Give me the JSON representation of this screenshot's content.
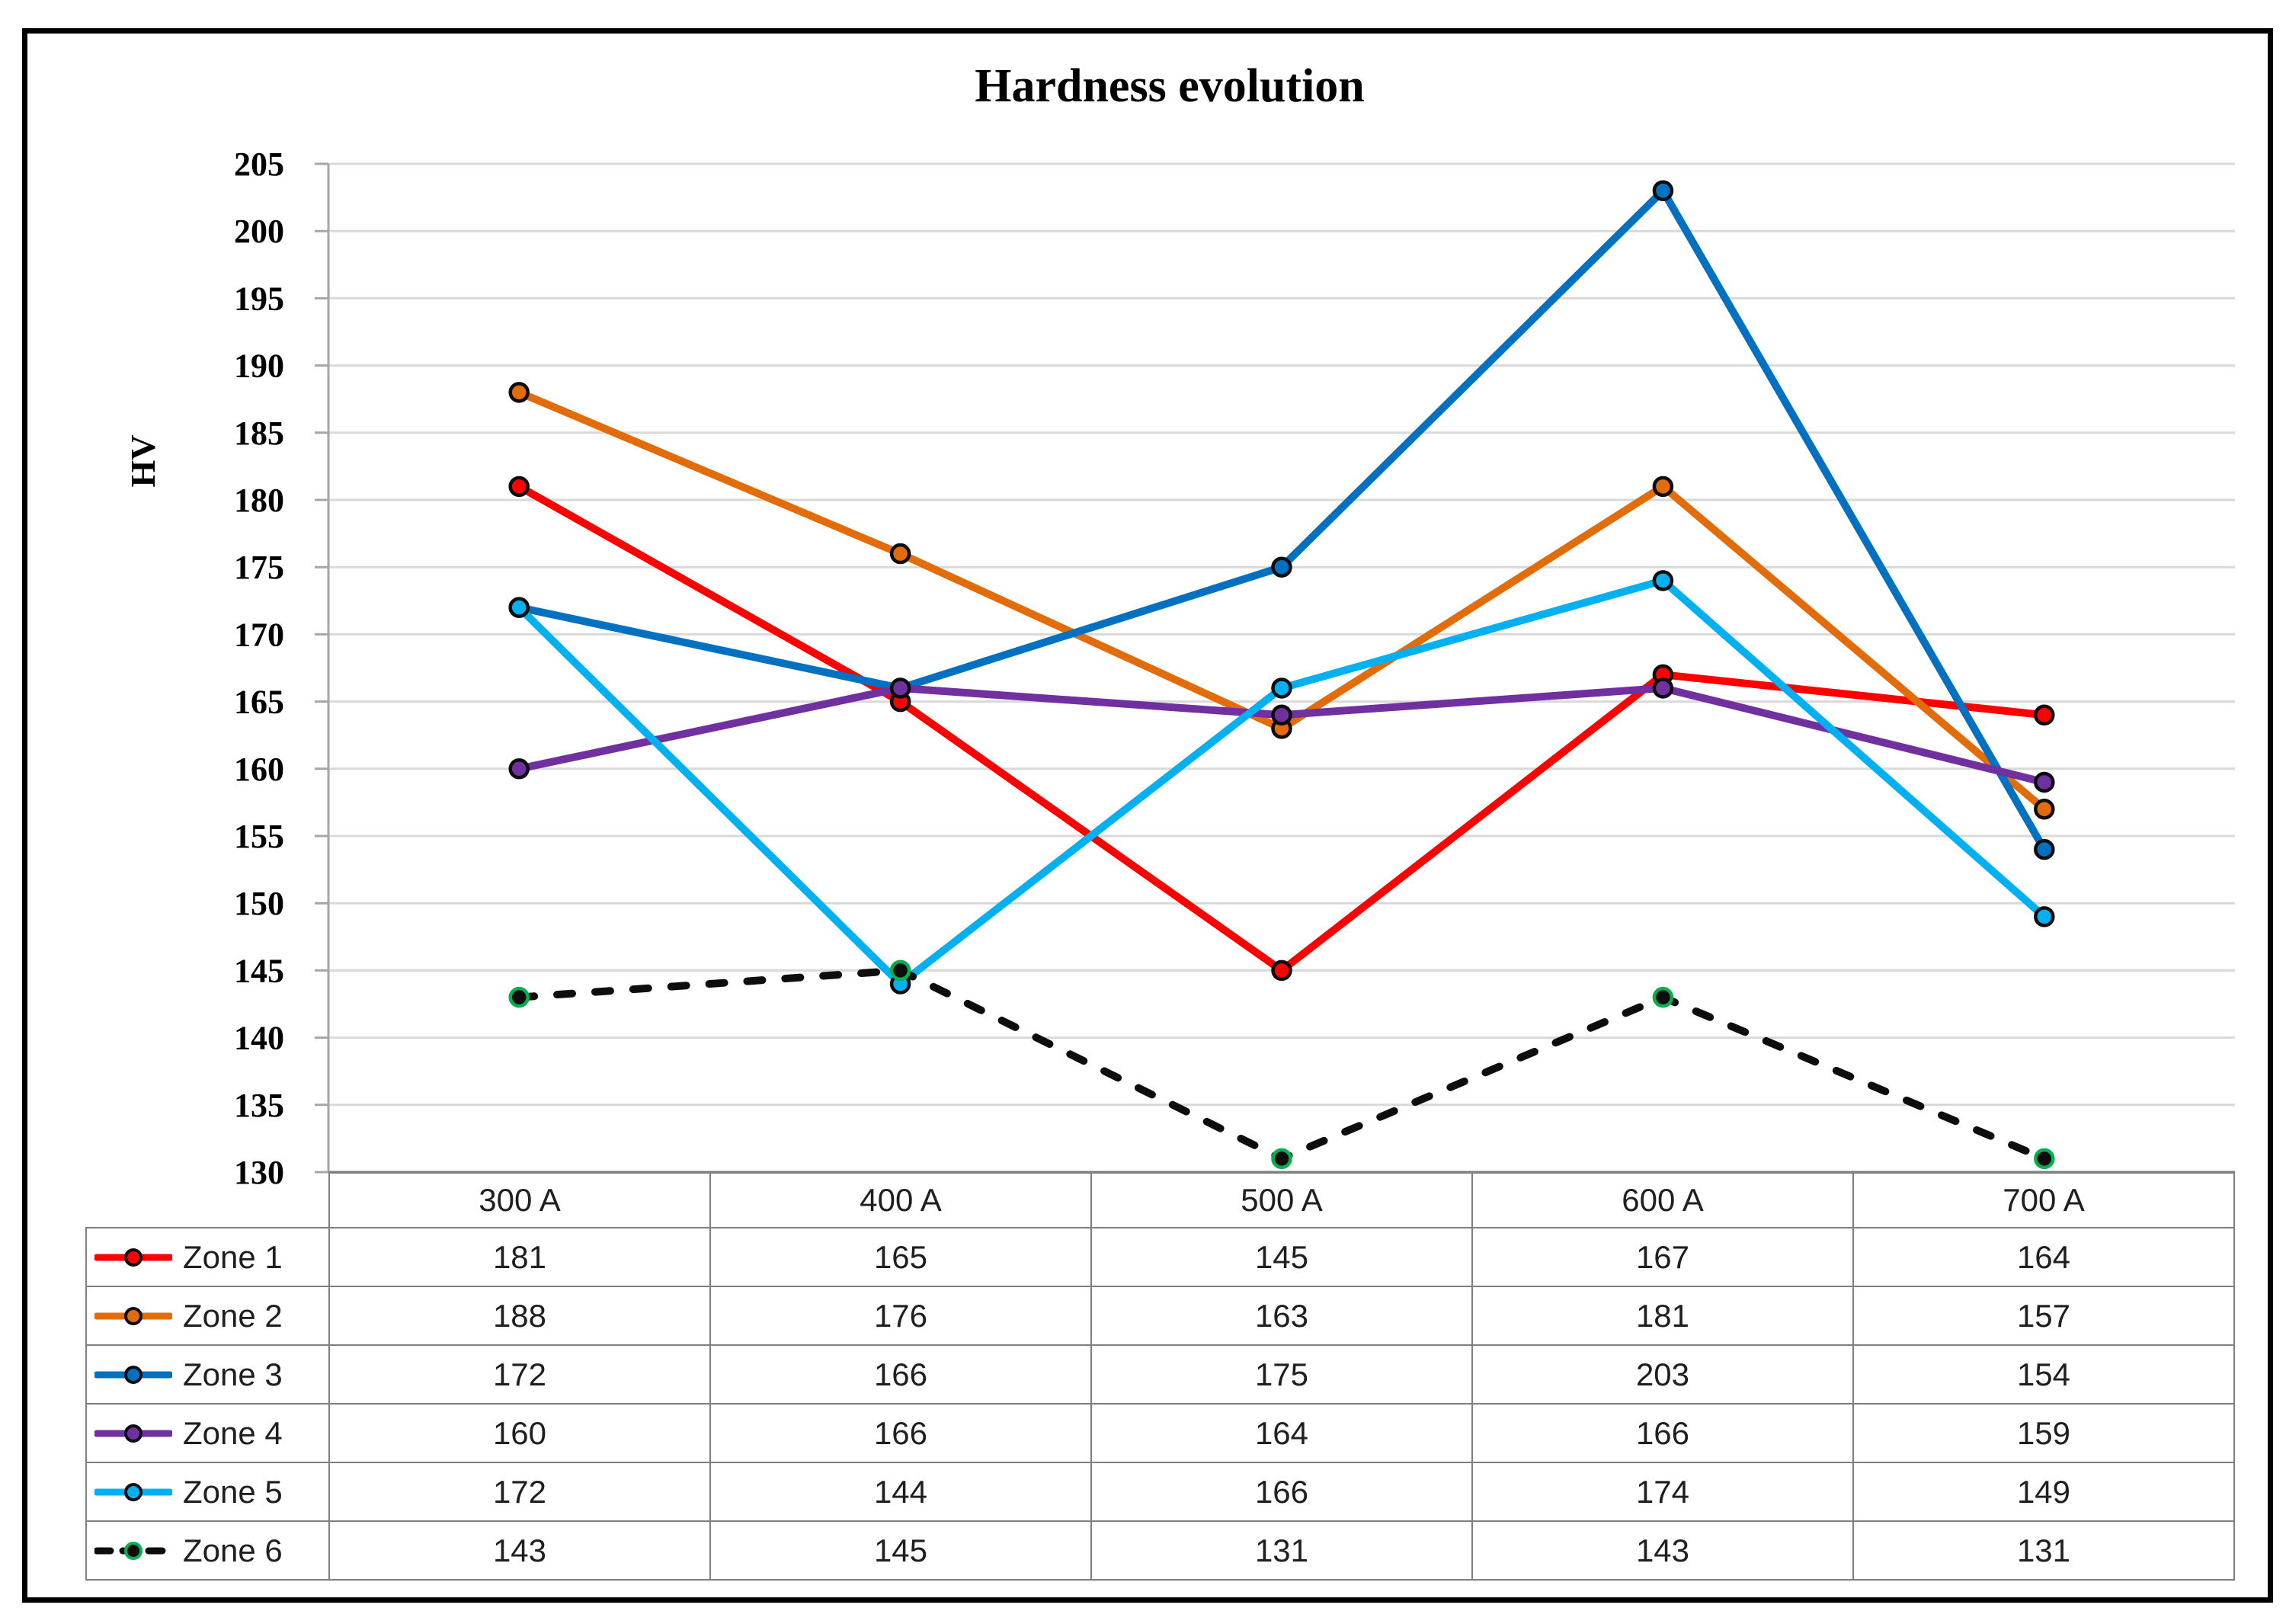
{
  "chart_data": {
    "type": "line",
    "title": "Hardness evolution",
    "ylabel": "HV",
    "xlabel": "",
    "categories": [
      "300 A",
      "400 A",
      "500 A",
      "600 A",
      "700 A"
    ],
    "series": [
      {
        "name": "Zone 1",
        "values": [
          181,
          165,
          145,
          167,
          164
        ],
        "color": "#FF0000",
        "marker_fill": "#FF0000",
        "marker_edge": "#0D0D0D",
        "dashed": false
      },
      {
        "name": "Zone 2",
        "values": [
          188,
          176,
          163,
          181,
          157
        ],
        "color": "#E36C0A",
        "marker_fill": "#E36C0A",
        "marker_edge": "#0D0D0D",
        "dashed": false
      },
      {
        "name": "Zone 3",
        "values": [
          172,
          166,
          175,
          203,
          154
        ],
        "color": "#0070C0",
        "marker_fill": "#0070C0",
        "marker_edge": "#0D0D0D",
        "dashed": false
      },
      {
        "name": "Zone 4",
        "values": [
          160,
          166,
          164,
          166,
          159
        ],
        "color": "#7030A0",
        "marker_fill": "#7030A0",
        "marker_edge": "#0D0D0D",
        "dashed": false
      },
      {
        "name": "Zone 5",
        "values": [
          172,
          144,
          166,
          174,
          149
        ],
        "color": "#00B0F0",
        "marker_fill": "#00B0F0",
        "marker_edge": "#0D0D0D",
        "dashed": false
      },
      {
        "name": "Zone 6",
        "values": [
          143,
          145,
          131,
          143,
          131
        ],
        "color": "#0D0D0D",
        "marker_fill": "#0D0D0D",
        "marker_edge": "#00B050",
        "dashed": true
      }
    ],
    "ylim": [
      130,
      205
    ],
    "y_ticks": [
      130,
      135,
      140,
      145,
      150,
      155,
      160,
      165,
      170,
      175,
      180,
      185,
      190,
      195,
      200,
      205
    ],
    "grid": true,
    "legend_position": "data-table-left"
  },
  "colors": {
    "background": "#FFFFFF",
    "frame_border": "#000000",
    "gridline": "#D9D9D9",
    "axis_line": "#A6A6A6",
    "baseline": "#7F7F7F",
    "table_border": "#7F7F7F",
    "title_text": "#000000",
    "table_text": "#1F1F1F"
  }
}
